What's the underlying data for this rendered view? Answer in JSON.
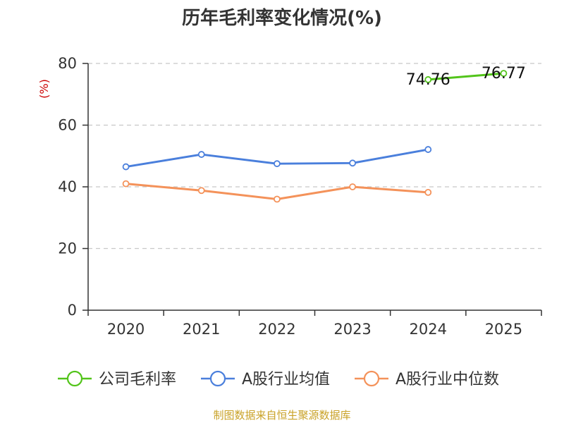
{
  "chart_data": {
    "type": "line",
    "title": "历年毛利率变化情况(%)",
    "ylabel": "(%)",
    "xlabel": "",
    "categories": [
      "2020",
      "2021",
      "2022",
      "2023",
      "2024",
      "2025"
    ],
    "ylim": [
      0,
      80
    ],
    "yticks": [
      0,
      20,
      40,
      60,
      80
    ],
    "grid": true,
    "legend_position": "bottom",
    "series": [
      {
        "name": "公司毛利率",
        "color": "#52c41a",
        "values": [
          null,
          null,
          null,
          null,
          74.76,
          76.77
        ],
        "labels": [
          null,
          null,
          null,
          null,
          "74.76",
          "76.77"
        ]
      },
      {
        "name": "A股行业均值",
        "color": "#4a7fdc",
        "values": [
          46.5,
          50.5,
          47.5,
          47.7,
          52.1,
          null
        ],
        "labels": [
          null,
          null,
          null,
          null,
          null,
          null
        ]
      },
      {
        "name": "A股行业中位数",
        "color": "#f4925a",
        "values": [
          41.0,
          38.8,
          36.0,
          40.0,
          38.2,
          null
        ],
        "labels": [
          null,
          null,
          null,
          null,
          null,
          null
        ]
      }
    ]
  },
  "source": "制图数据来自恒生聚源数据库"
}
